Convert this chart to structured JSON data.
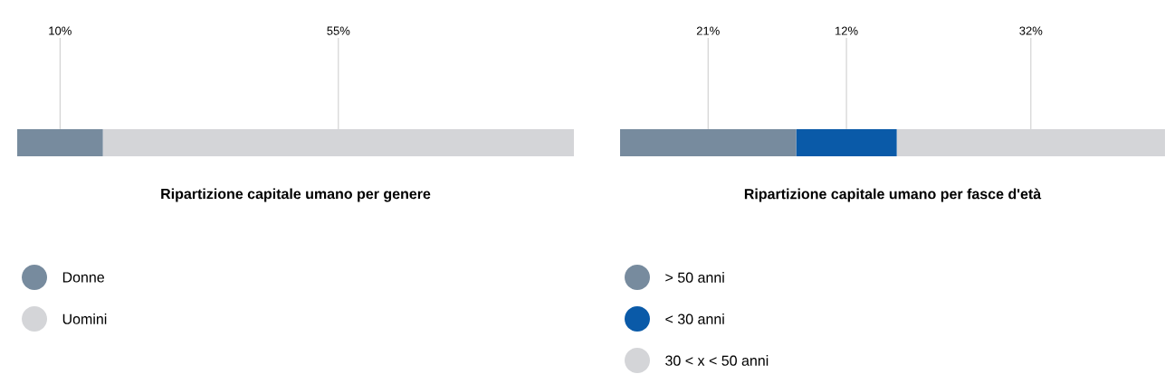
{
  "chart_data": [
    {
      "type": "bar",
      "orientation": "horizontal",
      "stacked": true,
      "title": "Ripartizione capitale umano per genere",
      "categories": [
        null
      ],
      "legend": "bottom",
      "series": [
        {
          "name": "Donne",
          "color": "#778b9e",
          "values": [
            10
          ],
          "value_labels": [
            "10%"
          ]
        },
        {
          "name": "Uomini",
          "color": "#d4d5d8",
          "values": [
            55
          ],
          "value_labels": [
            "55%"
          ]
        }
      ]
    },
    {
      "type": "bar",
      "orientation": "horizontal",
      "stacked": true,
      "title": "Ripartizione capitale umano per fasce d'età",
      "categories": [
        null
      ],
      "legend": "bottom",
      "series": [
        {
          "name": "> 50 anni",
          "color": "#778b9e",
          "values": [
            21
          ],
          "value_labels": [
            "21%"
          ]
        },
        {
          "name": "< 30 anni",
          "color": "#0a5aa8",
          "values": [
            12
          ],
          "value_labels": [
            "12%"
          ]
        },
        {
          "name": "30 < x < 50 anni",
          "color": "#d4d5d8",
          "values": [
            32
          ],
          "value_labels": [
            "32%"
          ]
        }
      ]
    }
  ]
}
